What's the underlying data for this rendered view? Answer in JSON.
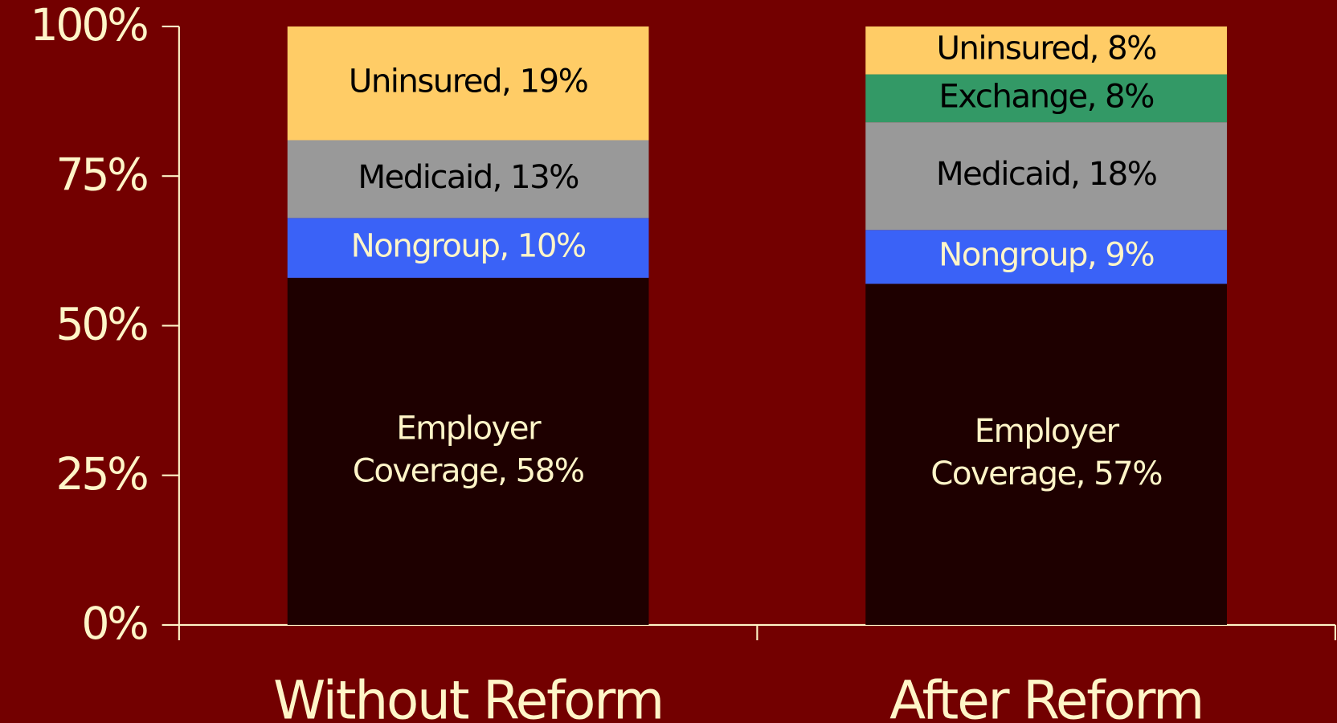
{
  "chart_data": {
    "type": "stacked_bar",
    "categories": [
      "Without Reform",
      "After Reform"
    ],
    "series": [
      {
        "color": "#1e0000",
        "label_color": "#fff5c8",
        "values": [
          58,
          57
        ],
        "value_labels": [
          "Employer\nCoverage, 58%",
          "Employer\nCoverage, 57%"
        ]
      },
      {
        "color": "#3a62f7",
        "label_color": "#fff5c8",
        "values": [
          10,
          9
        ],
        "value_labels": [
          "Nongroup, 10%",
          "Nongroup, 9%"
        ]
      },
      {
        "color": "#999999",
        "label_color": "#000000",
        "values": [
          13,
          18
        ],
        "value_labels": [
          "Medicaid, 13%",
          "Medicaid, 18%"
        ]
      },
      {
        "color": "#339966",
        "label_color": "#000000",
        "values": [
          null,
          8
        ],
        "value_labels": [
          null,
          "Exchange, 8%"
        ]
      },
      {
        "color": "#ffcc66",
        "label_color": "#000000",
        "values": [
          19,
          8
        ],
        "value_labels": [
          "Uninsured, 19%",
          "Uninsured, 8%"
        ]
      }
    ],
    "ylim": [
      0,
      100
    ],
    "yticks": [
      {
        "value": 0,
        "label": "0%"
      },
      {
        "value": 25,
        "label": "25%"
      },
      {
        "value": 50,
        "label": "50%"
      },
      {
        "value": 75,
        "label": "75%"
      },
      {
        "value": 100,
        "label": "100%"
      }
    ]
  }
}
